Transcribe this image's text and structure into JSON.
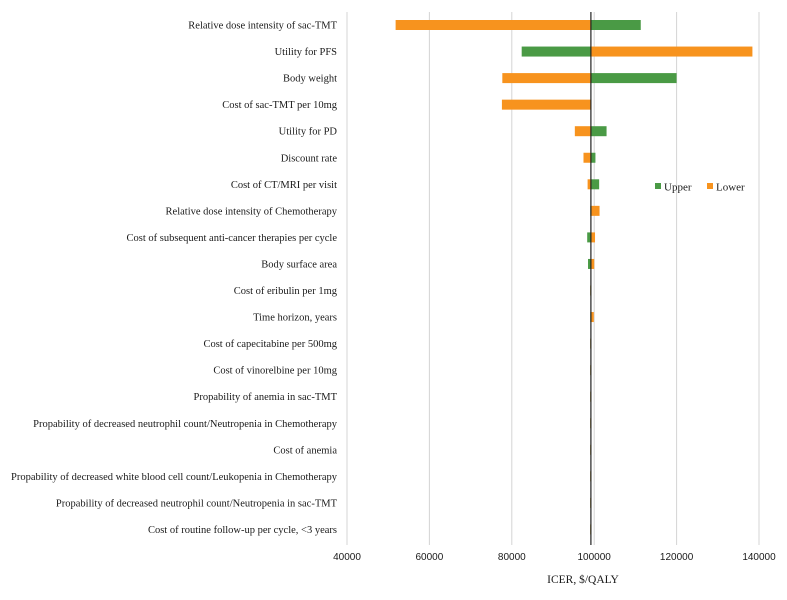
{
  "chart_data": {
    "type": "bar",
    "subtype": "tornado",
    "xlabel": "ICER, $/QALY",
    "xlim": [
      40000,
      140000
    ],
    "xticks": [
      40000,
      60000,
      80000,
      100000,
      120000,
      140000
    ],
    "xtick_labels": [
      "40000",
      "60000",
      "80000",
      "100000",
      "120000",
      "140000"
    ],
    "base_value": 99200,
    "grid": "vertical",
    "legend_position": "right",
    "legend": [
      {
        "name": "Upper",
        "color": "#4a9a45"
      },
      {
        "name": "Lower",
        "color": "#f7931e"
      }
    ],
    "categories": [
      "Relative dose intensity of sac-TMT",
      "Utility for PFS",
      "Body weight",
      "Cost of sac-TMT per 10mg",
      "Utility for PD",
      "Discount rate",
      "Cost of CT/MRI per visit",
      "Relative dose intensity of Chemotherapy",
      "Cost of subsequent anti-cancer therapies per cycle",
      "Body surface area",
      "Cost of eribulin per 1mg",
      "Time horizon, years",
      "Cost of capecitabine per 500mg",
      "Cost of vinorelbine per 10mg",
      "Propability of anemia in sac-TMT",
      "Propability of decreased neutrophil count/Neutropenia in Chemotherapy",
      "Cost of anemia",
      "Propability of decreased white blood cell count/Leukopenia in Chemotherapy",
      "Propability of decreased neutrophil count/Neutropenia in sac-TMT",
      "Cost of routine follow-up per cycle, <3 years"
    ],
    "series": [
      {
        "name": "Upper",
        "values": [
          111300,
          82400,
          120000,
          99200,
          103000,
          100300,
          101200,
          99200,
          98300,
          98500,
          99300,
          99200,
          99300,
          99300,
          99200,
          99200,
          99200,
          99200,
          99200,
          99200
        ]
      },
      {
        "name": "Lower",
        "values": [
          51800,
          138400,
          77700,
          77600,
          95300,
          97400,
          98400,
          101300,
          100200,
          100000,
          99100,
          99900,
          99100,
          99100,
          99200,
          99200,
          99200,
          99200,
          99200,
          99200
        ]
      }
    ]
  }
}
